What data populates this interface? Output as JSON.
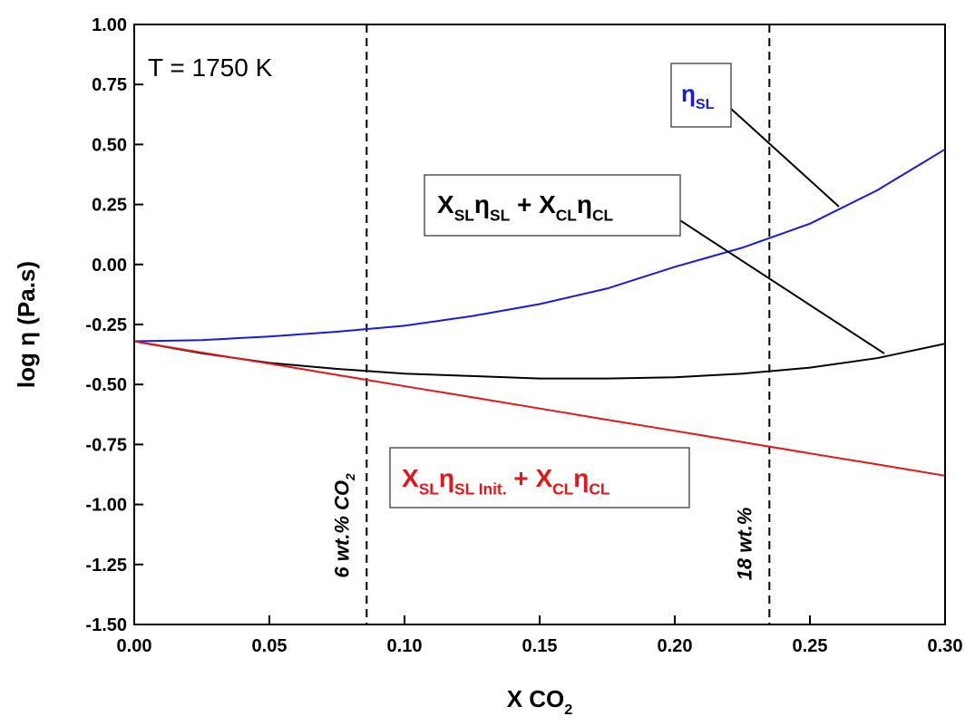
{
  "chart_data": {
    "type": "line",
    "x_label": "log η (Pa.s)",
    "y_label": "log η (Pa.s)",
    "x_label_parts": [
      {
        "text": "X CO"
      },
      {
        "text": "2",
        "sub": true
      }
    ],
    "x": [
      0,
      0.025,
      0.05,
      0.075,
      0.1,
      0.125,
      0.15,
      0.175,
      0.2,
      0.225,
      0.25,
      0.275,
      0.3
    ],
    "series": [
      {
        "color": "#1a1adc",
        "values": [
          -0.32,
          -0.315,
          -0.3,
          -0.28,
          -0.255,
          -0.215,
          -0.165,
          -0.1,
          -0.01,
          0.07,
          0.17,
          0.31,
          0.48
        ]
      },
      {
        "color": "#000000",
        "values": [
          -0.32,
          -0.37,
          -0.41,
          -0.435,
          -0.455,
          -0.465,
          -0.475,
          -0.475,
          -0.47,
          -0.455,
          -0.43,
          -0.39,
          -0.33
        ]
      },
      {
        "color": "#e3161b",
        "values": [
          -0.32,
          -0.367,
          -0.413,
          -0.46,
          -0.507,
          -0.553,
          -0.6,
          -0.647,
          -0.693,
          -0.74,
          -0.787,
          -0.833,
          -0.88
        ]
      }
    ],
    "xlim": [
      0,
      0.3
    ],
    "ylim": [
      -1.5,
      1.0
    ],
    "xticks": [
      {
        "value": 0,
        "label": "0.00"
      },
      0.05,
      {
        "value": 0.1,
        "label": "0.10"
      },
      0.15,
      {
        "value": 0.2,
        "label": "0.20"
      },
      0.25,
      {
        "value": 0.3,
        "label": "0.30"
      }
    ],
    "yticks": [
      {
        "value": -1.5,
        "label": "-1.50"
      },
      -1.25,
      {
        "value": -1,
        "label": "-1.00"
      },
      -0.75,
      {
        "value": -0.5,
        "label": "-0.50"
      },
      -0.25,
      {
        "value": 0,
        "label": "0.00"
      },
      0.25,
      {
        "value": 0.5,
        "label": "0.50"
      },
      0.75,
      {
        "value": 1,
        "label": "1.00"
      }
    ],
    "temperature_label": "T = 1750 K",
    "vlines": [
      {
        "x": 0.086,
        "label_parts": [
          {
            "text": "6 wt.% CO"
          },
          {
            "text": "2",
            "sub": true
          }
        ]
      },
      {
        "x": 0.235,
        "label_parts": [
          {
            "text": "18 wt.%"
          }
        ]
      }
    ],
    "annotations": [
      {
        "color": "#1a1adc",
        "parts": [
          {
            "text": "η"
          },
          {
            "text": "SL",
            "sub": true
          }
        ]
      },
      {
        "color": "#000000",
        "parts": [
          {
            "text": "X"
          },
          {
            "text": "SL",
            "sub": true
          },
          {
            "text": "η"
          },
          {
            "text": "SL",
            "sub": true
          },
          {
            "text": " + X"
          },
          {
            "text": "CL",
            "sub": true
          },
          {
            "text": "η"
          },
          {
            "text": "CL",
            "sub": true
          }
        ]
      },
      {
        "color": "#e3161b",
        "parts": [
          {
            "text": "X"
          },
          {
            "text": "SL",
            "sub": true
          },
          {
            "text": "η"
          },
          {
            "text": "SL Init.",
            "sub": true
          },
          {
            "text": " + X"
          },
          {
            "text": "CL",
            "sub": true
          },
          {
            "text": "η"
          },
          {
            "text": "CL",
            "sub": true
          }
        ]
      }
    ]
  }
}
